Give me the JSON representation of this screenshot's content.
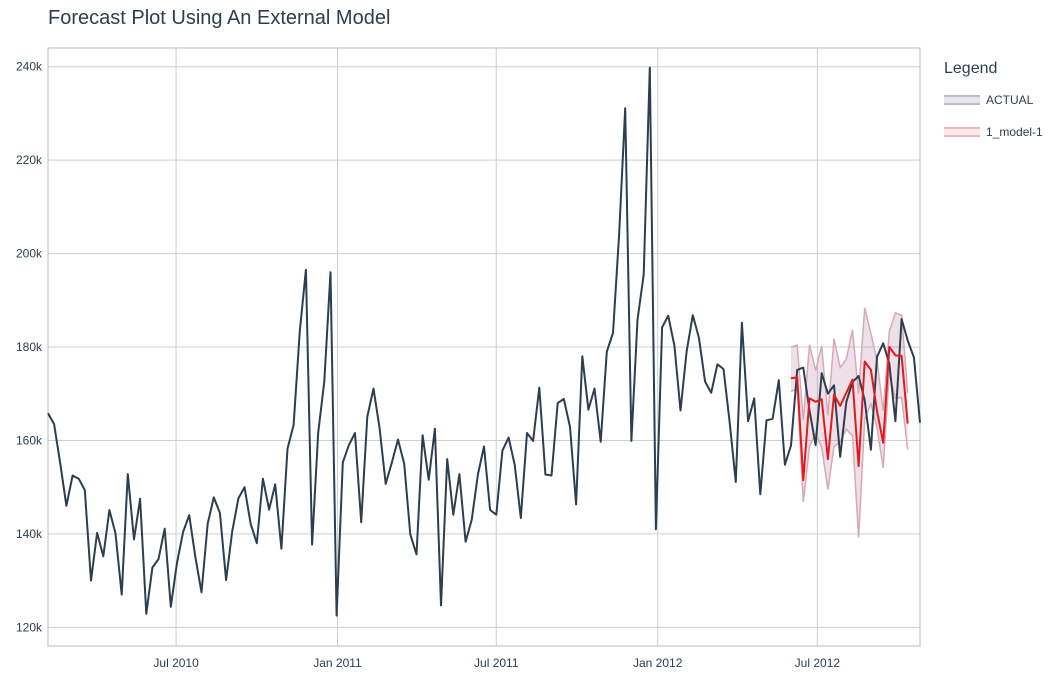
{
  "chart_data": {
    "type": "line",
    "title": "Forecast Plot Using An External Model",
    "legend_title": "Legend",
    "legend_placement": "right",
    "grid": true,
    "xlim": [
      "2010-02-05",
      "2012-10-26"
    ],
    "ylim": [
      116000,
      244000
    ],
    "y_ticks": [
      120000,
      140000,
      160000,
      180000,
      200000,
      220000,
      240000
    ],
    "y_tick_labels": [
      "120k",
      "140k",
      "160k",
      "180k",
      "200k",
      "220k",
      "240k"
    ],
    "x_ticks": [
      "2010-07-01",
      "2011-01-01",
      "2011-07-01",
      "2012-01-01",
      "2012-07-01"
    ],
    "x_tick_labels": [
      "Jul 2010",
      "Jan 2011",
      "Jul 2011",
      "Jan 2012",
      "Jul 2012"
    ],
    "actual_start": "2010-02-05",
    "series": [
      {
        "name": "ACTUAL",
        "color": "#2c3e50",
        "values": [
          165800,
          163500,
          155000,
          146000,
          152500,
          151800,
          149400,
          130000,
          140200,
          135200,
          145100,
          140100,
          127000,
          152800,
          138800,
          147500,
          122900,
          132800,
          134600,
          141100,
          124400,
          133800,
          140400,
          144000,
          135000,
          127500,
          142200,
          147800,
          144500,
          130100,
          140500,
          147600,
          150000,
          142200,
          138000,
          151800,
          145200,
          150600,
          136800,
          158200,
          163300,
          183400,
          196500,
          137700,
          161700,
          172600,
          196000,
          122500,
          155300,
          159000,
          161600,
          142500,
          165100,
          171100,
          162600,
          150700,
          155300,
          160200,
          155000,
          139900,
          135600,
          161100,
          151600,
          162500,
          124700,
          156000,
          144100,
          152800,
          138300,
          143000,
          152700,
          158700,
          145100,
          144100,
          157800,
          160600,
          154800,
          143400,
          161600,
          159900,
          171300,
          152700,
          152500,
          168000,
          168900,
          162900,
          146300,
          178000,
          166600,
          171100,
          159700,
          179000,
          183000,
          204000,
          231100,
          159900,
          185800,
          195500,
          239800,
          141000,
          184200,
          186700,
          180300,
          166400,
          179000,
          186800,
          182000,
          172600,
          170200,
          176300,
          175300,
          164000,
          151100,
          185200,
          164100,
          169000,
          148500,
          164300,
          164600,
          172900,
          154800,
          158900,
          175100,
          175600,
          166400,
          159000,
          174400,
          170000,
          171800,
          156500,
          168200,
          172500,
          173800,
          168600,
          158000,
          177900,
          180800,
          176500,
          164100,
          186000,
          181400,
          177800,
          163800
        ]
      },
      {
        "name": "1_model-1",
        "color": "#e31a1c",
        "forecast_start": "2012-06-01",
        "values": [
          173300,
          173500,
          151500,
          169000,
          168300,
          168800,
          156000,
          169800,
          167400,
          170200,
          173000,
          154500,
          176900,
          175100,
          166300,
          159500,
          180000,
          178200,
          178100,
          163600
        ],
        "conf_lo": [
          170500,
          171000,
          146800,
          158800,
          161400,
          158500,
          149500,
          158700,
          159700,
          162400,
          161000,
          139200,
          164600,
          167800,
          162800,
          154100,
          174500,
          169000,
          169200,
          158000
        ],
        "conf_hi": [
          180000,
          180400,
          164400,
          180500,
          175000,
          180200,
          165400,
          181800,
          175600,
          177400,
          183700,
          170000,
          188400,
          182900,
          177100,
          166300,
          183300,
          187300,
          186800,
          170200
        ]
      }
    ]
  }
}
